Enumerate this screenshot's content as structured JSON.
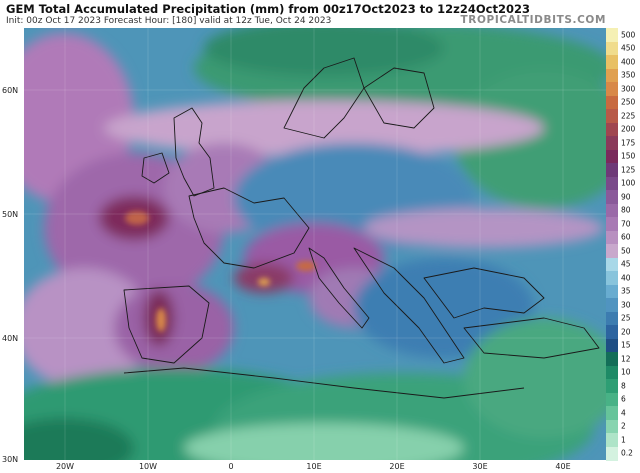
{
  "header": {
    "title": "GEM Total Accumulated Precipitation (mm) from 00z17Oct2023 to 12z24Oct2023",
    "subtitle": "Init: 00z Oct 17 2023   Forecast Hour: [180]   valid at 12z Tue, Oct 24 2023",
    "brand": "TROPICALTIDBITS.COM"
  },
  "map": {
    "lat_labels": [
      "60N",
      "50N",
      "40N",
      "30N"
    ],
    "lon_labels": [
      "20W",
      "10W",
      "0",
      "10E",
      "20E",
      "30E",
      "40E"
    ]
  },
  "legend": {
    "labels": [
      "500",
      "450",
      "400",
      "350",
      "300",
      "250",
      "225",
      "200",
      "175",
      "150",
      "125",
      "100",
      "90",
      "80",
      "70",
      "60",
      "50",
      "45",
      "40",
      "35",
      "30",
      "25",
      "20",
      "15",
      "12",
      "10",
      "8",
      "6",
      "4",
      "2",
      "1",
      "0.2"
    ],
    "colors": [
      "#f5f0b4",
      "#f0dc8c",
      "#e8c064",
      "#e0a050",
      "#d88848",
      "#c86a40",
      "#b85a48",
      "#a04650",
      "#8a3a5a",
      "#7a2a5c",
      "#6e3a78",
      "#7a4a8a",
      "#8a5a9a",
      "#9a6aa8",
      "#a87ab4",
      "#b890c0",
      "#c8a8cc",
      "#a8d8e8",
      "#88c4dc",
      "#68acd0",
      "#5094c0",
      "#3c7cb0",
      "#2c64a0",
      "#1e4e84",
      "#136e58",
      "#1e8a66",
      "#2e9e74",
      "#48b286",
      "#66c49a",
      "#88d4b0",
      "#aee4c8",
      "#d4f2e0"
    ]
  }
}
